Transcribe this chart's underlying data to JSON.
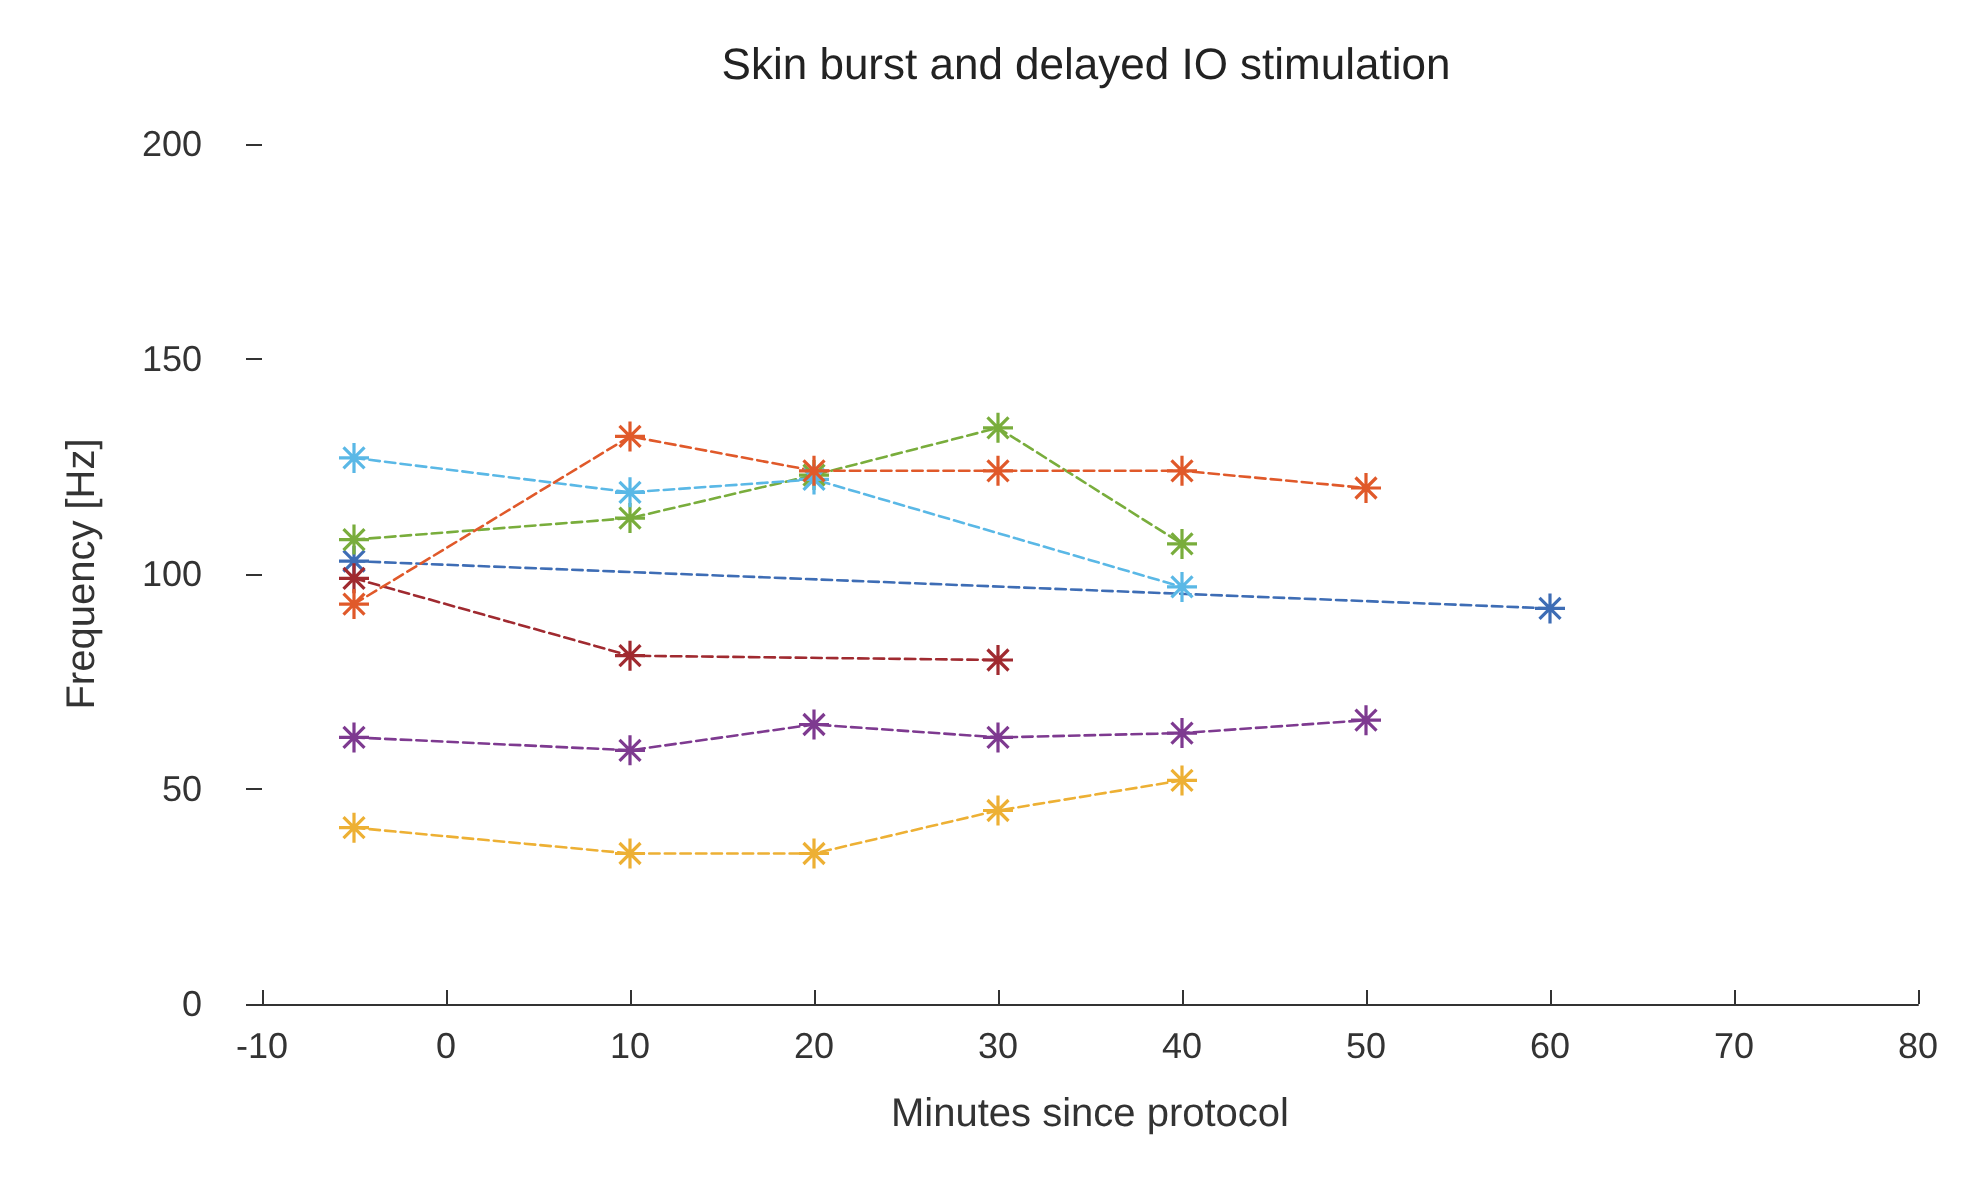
{
  "chart_data": {
    "type": "line",
    "title": "Skin burst and delayed IO stimulation",
    "xlabel": "Minutes since protocol",
    "ylabel": "Frequency [Hz]",
    "xlim": [
      -10,
      80
    ],
    "xticks": [
      -10,
      0,
      10,
      20,
      30,
      40,
      50,
      60,
      70,
      80
    ],
    "ylim": [
      0,
      200
    ],
    "yticks": [
      0,
      50,
      100,
      150,
      200
    ],
    "grid": false,
    "marker": "cross",
    "line_style": "dashed",
    "series": [
      {
        "color": "#3e6db5",
        "x": [
          -5,
          60
        ],
        "values": [
          103,
          92
        ]
      },
      {
        "color": "#edb034",
        "x": [
          -5,
          10,
          20,
          30,
          40
        ],
        "values": [
          41,
          35,
          35,
          45,
          52
        ]
      },
      {
        "color": "#7e3a90",
        "x": [
          -5,
          10,
          20,
          30,
          40,
          50
        ],
        "values": [
          62,
          59,
          65,
          62,
          63,
          66
        ]
      },
      {
        "color": "#79ad3c",
        "x": [
          -5,
          10,
          20,
          30,
          40
        ],
        "values": [
          108,
          113,
          123,
          134,
          107
        ]
      },
      {
        "color": "#5ab8e6",
        "x": [
          -5,
          10,
          20,
          40
        ],
        "values": [
          127,
          119,
          122,
          97
        ]
      },
      {
        "color": "#a02a30",
        "x": [
          -5,
          10,
          30
        ],
        "values": [
          99,
          81,
          80
        ]
      },
      {
        "color": "#e0592a",
        "x": [
          -5,
          10,
          20,
          30,
          40,
          50
        ],
        "values": [
          93,
          132,
          124,
          124,
          124,
          120
        ]
      }
    ]
  }
}
